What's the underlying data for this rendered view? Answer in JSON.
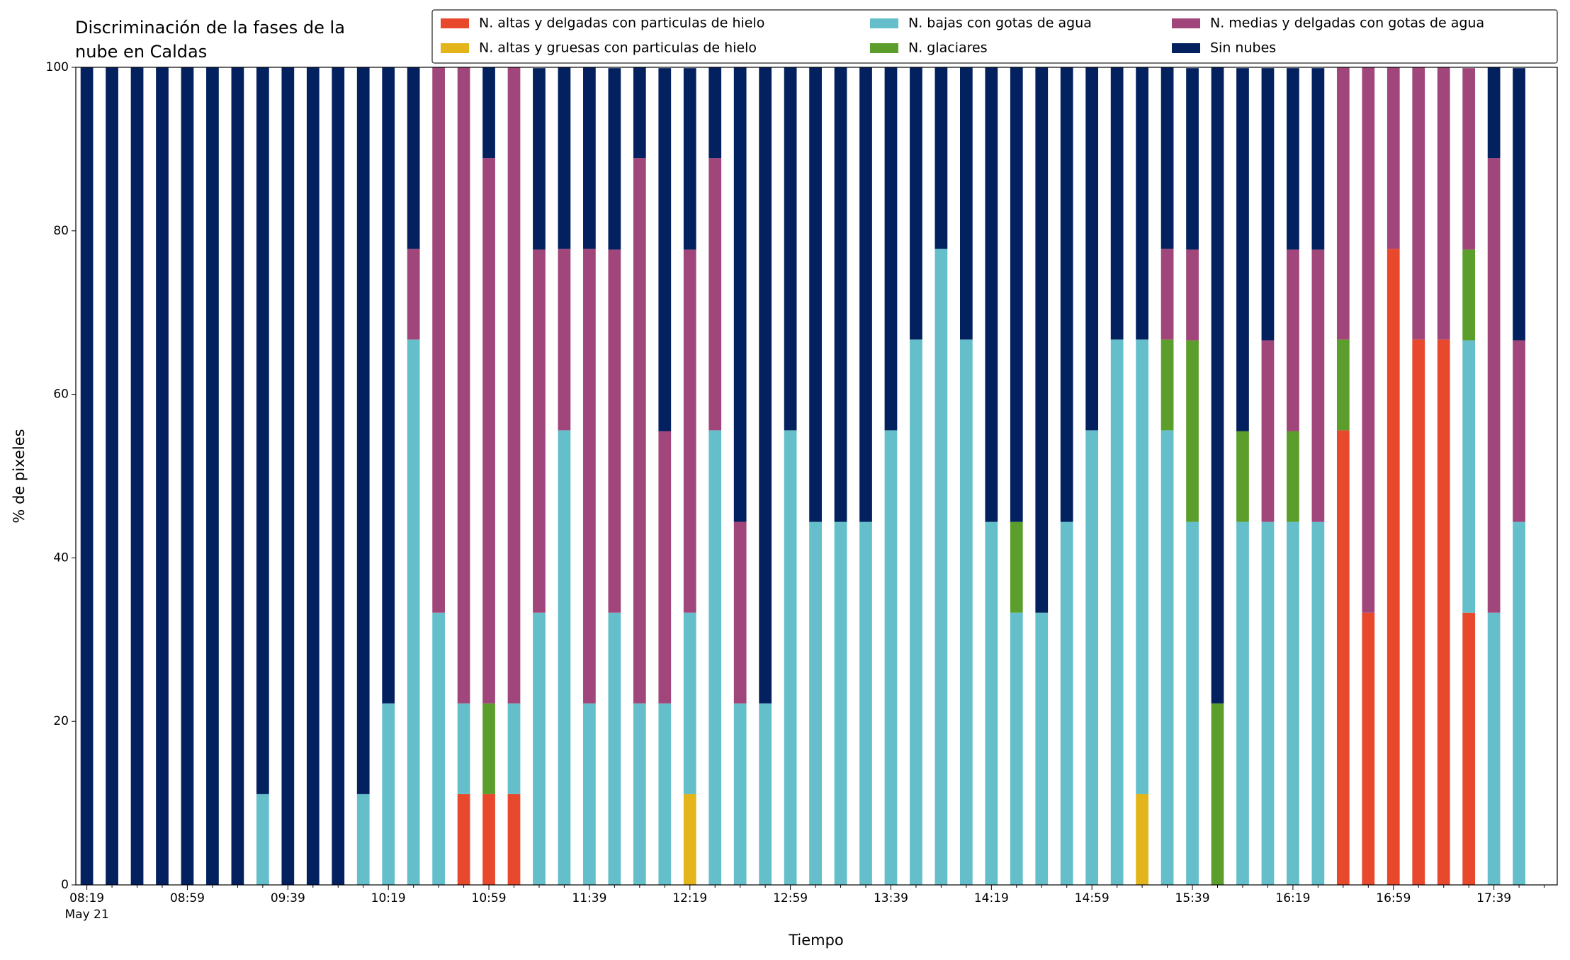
{
  "chart_data": {
    "type": "bar",
    "title": [
      "Discriminación de la fases de la",
      "nube en Caldas"
    ],
    "xlabel": "Tiempo",
    "ylabel": "% de pixeles",
    "date_label": "May 21",
    "categories": [
      "08:19",
      null,
      null,
      null,
      "08:59",
      null,
      null,
      null,
      "09:39",
      null,
      null,
      null,
      "10:19",
      null,
      null,
      null,
      "10:59",
      null,
      null,
      null,
      "11:39",
      null,
      null,
      null,
      "12:19",
      null,
      null,
      null,
      "12:59",
      null,
      null,
      null,
      "13:39",
      null,
      null,
      null,
      "14:19",
      null,
      null,
      null,
      "14:59",
      null,
      null,
      null,
      "15:39",
      null,
      null,
      null,
      "16:19",
      null,
      null,
      null,
      "16:59",
      null,
      null,
      null,
      "17:39",
      null
    ],
    "ylim": [
      0,
      100
    ],
    "yticks": [
      0,
      20,
      40,
      60,
      80,
      100
    ],
    "grid": false,
    "stacked": true,
    "series": [
      {
        "name": "N. altas y delgadas con particulas de hielo",
        "color": "#e8482c",
        "values": [
          0,
          0,
          0,
          0,
          0,
          0,
          0,
          0,
          0,
          0,
          0,
          0,
          0,
          0,
          0,
          11.1,
          11.1,
          11.1,
          0,
          0,
          0,
          0,
          0,
          0,
          0,
          0,
          0,
          0,
          0,
          0,
          0,
          0,
          0,
          0,
          0,
          0,
          0,
          0,
          0,
          0,
          0,
          0,
          0,
          0,
          0,
          0,
          0,
          0,
          0,
          0,
          55.6,
          33.3,
          77.8,
          66.7,
          66.7,
          33.3,
          0,
          0
        ]
      },
      {
        "name": "N. altas y gruesas con particulas de hielo",
        "color": "#e3b51b",
        "values": [
          0,
          0,
          0,
          0,
          0,
          0,
          0,
          0,
          0,
          0,
          0,
          0,
          0,
          0,
          0,
          0,
          0,
          0,
          0,
          0,
          0,
          0,
          0,
          0,
          11.1,
          0,
          0,
          0,
          0,
          0,
          0,
          0,
          0,
          0,
          0,
          0,
          0,
          0,
          0,
          0,
          0,
          0,
          11.1,
          0,
          0,
          0,
          0,
          0,
          0,
          0,
          0,
          0,
          0,
          0,
          0,
          0,
          0,
          0
        ]
      },
      {
        "name": "N. bajas con gotas de agua",
        "color": "#64bfca",
        "values": [
          0,
          0,
          0,
          0,
          0,
          0,
          0,
          11.1,
          0,
          0,
          0,
          11.1,
          22.2,
          66.7,
          33.3,
          11.1,
          0,
          11.1,
          33.3,
          55.6,
          22.2,
          33.3,
          22.2,
          22.2,
          22.2,
          55.6,
          22.2,
          22.2,
          55.6,
          44.4,
          44.4,
          44.4,
          55.6,
          66.7,
          77.8,
          66.7,
          44.4,
          33.3,
          33.3,
          44.4,
          55.6,
          66.7,
          55.6,
          55.6,
          44.4,
          0,
          44.4,
          44.4,
          44.4,
          44.4,
          0,
          0,
          0,
          0,
          0,
          33.3,
          33.3,
          44.4
        ]
      },
      {
        "name": "N. glaciares",
        "color": "#5c9e2c",
        "values": [
          0,
          0,
          0,
          0,
          0,
          0,
          0,
          0,
          0,
          0,
          0,
          0,
          0,
          0,
          0,
          0,
          11.1,
          0,
          0,
          0,
          0,
          0,
          0,
          0,
          0,
          0,
          0,
          0,
          0,
          0,
          0,
          0,
          0,
          0,
          0,
          0,
          0,
          11.1,
          0,
          0,
          0,
          0,
          0,
          11.1,
          22.2,
          22.2,
          11.1,
          0,
          11.1,
          0,
          11.1,
          0,
          0,
          0,
          0,
          11.1,
          0,
          0
        ]
      },
      {
        "name": "N. medias y delgadas con gotas de agua",
        "color": "#a1467a",
        "values": [
          0,
          0,
          0,
          0,
          0,
          0,
          0,
          0,
          0,
          0,
          0,
          0,
          0,
          11.1,
          66.7,
          77.8,
          66.7,
          77.8,
          44.4,
          22.2,
          55.6,
          44.4,
          66.7,
          33.3,
          44.4,
          33.3,
          22.2,
          0,
          0,
          0,
          0,
          0,
          0,
          0,
          0,
          0,
          0,
          0,
          0,
          0,
          0,
          0,
          0,
          11.1,
          11.1,
          0,
          0,
          22.2,
          22.2,
          33.3,
          33.3,
          66.7,
          22.2,
          33.3,
          33.3,
          22.2,
          55.6,
          22.2
        ]
      },
      {
        "name": "Sin nubes",
        "color": "#03205f",
        "values": [
          100,
          100,
          100,
          100,
          100,
          100,
          100,
          88.9,
          100,
          100,
          100,
          88.9,
          77.8,
          22.2,
          0,
          0,
          11.1,
          0,
          22.2,
          22.2,
          22.2,
          22.2,
          11.1,
          44.4,
          22.2,
          11.1,
          55.6,
          77.8,
          44.4,
          55.6,
          55.6,
          55.6,
          44.4,
          33.3,
          22.2,
          33.3,
          55.6,
          55.6,
          66.7,
          55.6,
          44.4,
          33.3,
          33.3,
          22.2,
          22.2,
          77.8,
          44.4,
          33.3,
          22.2,
          22.2,
          0,
          0,
          0,
          0,
          0,
          0,
          11.1,
          33.3
        ]
      }
    ]
  }
}
